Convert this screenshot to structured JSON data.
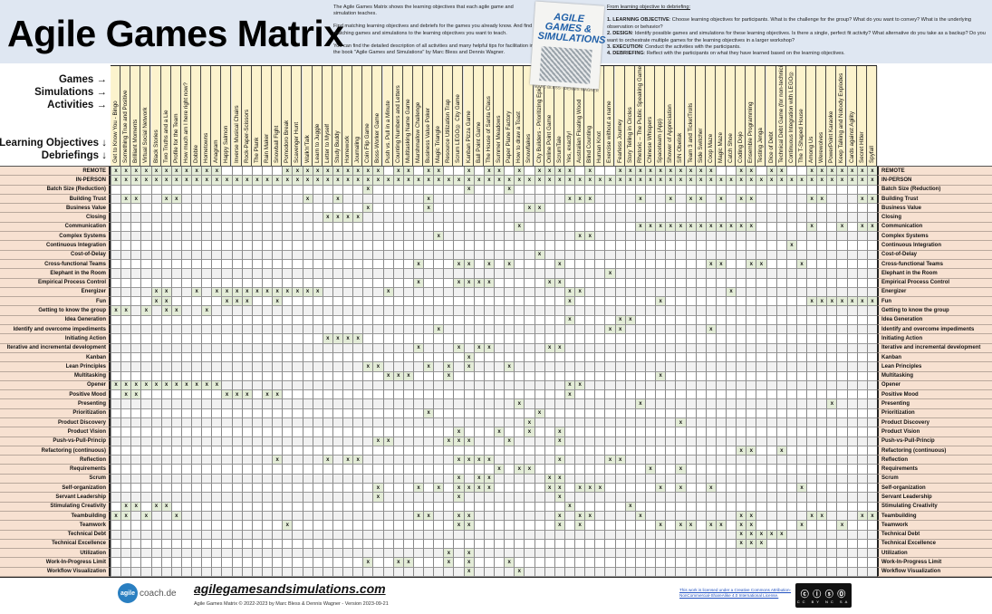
{
  "title": "Agile Games Matrix",
  "intro": [
    "The Agile Games Matrix shows the learning objectives that each agile game and simulation teaches.",
    "Find matching learning objectives and debriefs for the games you already know. And find matching games and simulations to the learning objectives you want to teach.",
    "You can find the detailed description of all activities and many helpful tips for facilitation in the book \"Agile Games and Simulations\" by Marc Bless and Dennis Wagner."
  ],
  "book": {
    "title": "AGILE GAMES & SIMULATIONS",
    "authors": "MARC BLESS · DENNIS WAGNER"
  },
  "debriefing": {
    "heading": "From learning objective to debriefing:",
    "steps": [
      {
        "label": "1. LEARNING OBJECTIVE",
        "text": ": Choose learning objectives for participants. What is the challenge for the group? What do you want to convey? What is the underlying observation or behavior?"
      },
      {
        "label": "2. DESIGN",
        "text": ": Identify possible games and simulations for these learning objectives. Is there a single, perfect fit activity? What alternative do you take as a backup? Do you want to orchestrate multiple games for the learning objectives in a larger workshop?"
      },
      {
        "label": "3. EXECUTION",
        "text": ": Conduct the activities with the participants."
      },
      {
        "label": "4. DEBRIEFING",
        "text": ": Reflect with the participants on what they have learned based on the learning objectives."
      }
    ]
  },
  "axis_labels": {
    "games": "Games →",
    "simulations": "Simulations →",
    "activities": "Activities →",
    "objectives": "Learning Objectives ↓",
    "debriefings": "Debriefings ↓"
  },
  "mark": "x",
  "colors": {
    "header_band": "#dfe7f2",
    "column_header": "#fcf3cd",
    "row_label": "#f7e1d1",
    "marked_cell": "#e3ecd7"
  },
  "games": [
    "Get to Know You - Bingo",
    "Something True and Positive",
    "Brilliant Moments",
    "Virtual Social Network",
    "Black Stories",
    "Two Truths and a Lie",
    "Profile for the Team",
    "How much am I here right now?",
    "Dobble",
    "Hometowns",
    "Anagram",
    "Happy Salmon",
    "Inverse Musical Chairs",
    "Rock-Paper-Scissors",
    "The Plank",
    "Rain Maker",
    "Snowball Fight",
    "Pomodoro Break",
    "Scavenger Hunt",
    "Walk'n'Talk",
    "Learn to Juggle",
    "Letter to Myself",
    "Study Buddy",
    "Homework",
    "Journaling",
    "Coin Flip Game",
    "Boss-Worker Game",
    "Push vs. Pull in a Minute",
    "Counting Numbers and Letters",
    "Multitasking Name Game",
    "Marshmallow Challenge",
    "Business Value Poker",
    "Magic Triangle",
    "Resource Utilization Trap",
    "Scrum LEGO® City Game",
    "Kanban Pizza Game",
    "Ball Point Game",
    "The House of Santa Claus",
    "Summer Meadows",
    "Paper Plane Factory",
    "How to draw a Toast",
    "Snowflakes",
    "City Builders - Prioritizing Epic",
    "Online Point Game",
    "ScrumTale",
    "Yes, exactly!",
    "Australian Floating Wood",
    "Blind Counting",
    "Human Knot",
    "Exercise without a name",
    "Fearless Journey",
    "Story Telling in Circles",
    "Rhetoric – The Public Speaking Game",
    "Chinese Whispers",
    "Spaceteam (App)",
    "Shower of Appreciation",
    "SIN Obelisk",
    "Team 3 and TicketTrolls",
    "Side Switcher",
    "Coop Maze",
    "Magic Maze",
    "Catch Shoe",
    "Coding Dojo",
    "Ensemble Programming",
    "Testing Jenga",
    "Dice of Debt",
    "Technical Debt Game (for non-technicians)",
    "Continuous Integration with LEGO®",
    "The T-Shaped House",
    "Among Us",
    "Werewolves",
    "PowerPoint Karaoke",
    "Keep Talking and Nobody Explodes",
    "Cards against Agility",
    "Secret Hitler",
    "Spyfall"
  ],
  "rows": [
    {
      "label": "REMOTE",
      "games": [
        1,
        2,
        3,
        4,
        5,
        6,
        7,
        8,
        9,
        10,
        11,
        18,
        19,
        20,
        21,
        22,
        23,
        24,
        25,
        26,
        27,
        29,
        30,
        32,
        33,
        36,
        38,
        39,
        41,
        43,
        44,
        45,
        46,
        48,
        51,
        52,
        53,
        54,
        55,
        56,
        57,
        58,
        59,
        60,
        63,
        64,
        66,
        67,
        70,
        71,
        72,
        73,
        74,
        75,
        76
      ]
    },
    {
      "label": "IN-PERSON",
      "games": [
        1,
        2,
        3,
        4,
        5,
        6,
        7,
        8,
        9,
        10,
        11,
        12,
        13,
        14,
        15,
        16,
        17,
        18,
        19,
        20,
        21,
        22,
        23,
        24,
        25,
        26,
        27,
        28,
        29,
        30,
        31,
        32,
        33,
        34,
        35,
        36,
        37,
        38,
        39,
        40,
        41,
        42,
        43,
        44,
        45,
        46,
        47,
        48,
        49,
        50,
        51,
        52,
        53,
        54,
        55,
        56,
        57,
        58,
        59,
        60,
        61,
        62,
        63,
        64,
        65,
        66,
        67,
        68,
        69,
        70,
        71,
        72,
        73,
        74,
        75,
        76
      ]
    },
    {
      "label": "Batch Size (Reduction)",
      "games": [
        26,
        36,
        40
      ]
    },
    {
      "label": "Building Trust",
      "games": [
        2,
        3,
        6,
        7,
        20,
        23,
        32,
        46,
        47,
        48,
        53,
        56,
        58,
        59,
        61,
        63,
        64,
        70,
        71,
        75,
        76
      ]
    },
    {
      "label": "Business Value",
      "games": [
        26,
        32,
        42,
        43
      ]
    },
    {
      "label": "Closing",
      "games": [
        22,
        23,
        24,
        25
      ]
    },
    {
      "label": "Communication",
      "games": [
        41,
        53,
        54,
        55,
        56,
        57,
        58,
        59,
        60,
        61,
        62,
        63,
        64,
        70,
        73,
        75,
        76
      ]
    },
    {
      "label": "Complex Systems",
      "games": [
        33,
        47,
        48
      ]
    },
    {
      "label": "Continuous Integration",
      "games": [
        68
      ]
    },
    {
      "label": "Cost-of-Delay",
      "games": [
        43
      ]
    },
    {
      "label": "Cross-functional Teams",
      "games": [
        31,
        35,
        36,
        38,
        40,
        45,
        60,
        61,
        64,
        65,
        69
      ]
    },
    {
      "label": "Elephant in the Room",
      "games": [
        50
      ]
    },
    {
      "label": "Empirical Process Control",
      "games": [
        31,
        35,
        36,
        37,
        38,
        44,
        45
      ]
    },
    {
      "label": "Energizer",
      "games": [
        5,
        6,
        9,
        11,
        12,
        13,
        14,
        15,
        16,
        17,
        18,
        19,
        20,
        21,
        28,
        46,
        47,
        62
      ]
    },
    {
      "label": "Fun",
      "games": [
        5,
        6,
        12,
        13,
        14,
        17,
        46,
        55,
        70,
        71,
        72,
        73,
        74,
        75,
        76
      ]
    },
    {
      "label": "Getting to know the group",
      "games": [
        1,
        2,
        4,
        6,
        7,
        10
      ]
    },
    {
      "label": "Idea Generation",
      "games": [
        46,
        51,
        52
      ]
    },
    {
      "label": "Identify and overcome impediments",
      "games": [
        33,
        50,
        51,
        60
      ]
    },
    {
      "label": "Initiating Action",
      "games": [
        22,
        23,
        24,
        25
      ]
    },
    {
      "label": "Iterative and incremental development",
      "games": [
        31,
        35,
        37,
        38,
        44,
        45
      ]
    },
    {
      "label": "Kanban",
      "games": [
        36
      ]
    },
    {
      "label": "Lean Principles",
      "games": [
        26,
        27,
        32,
        34,
        36,
        40
      ]
    },
    {
      "label": "Multitasking",
      "games": [
        28,
        29,
        30,
        34,
        55
      ]
    },
    {
      "label": "Opener",
      "games": [
        1,
        2,
        3,
        4,
        5,
        6,
        7,
        8,
        9,
        10,
        11,
        46,
        47
      ]
    },
    {
      "label": "Positive Mood",
      "games": [
        2,
        3,
        12,
        13,
        14,
        16,
        17,
        46
      ]
    },
    {
      "label": "Presenting",
      "games": [
        41,
        53,
        72
      ]
    },
    {
      "label": "Prioritization",
      "games": [
        32,
        43
      ]
    },
    {
      "label": "Product Discovery",
      "games": [
        42,
        57
      ]
    },
    {
      "label": "Product Vision",
      "games": [
        35,
        39,
        42,
        45
      ]
    },
    {
      "label": "Push-vs-Pull-Princip",
      "games": [
        27,
        28,
        34,
        35,
        36,
        40,
        45
      ]
    },
    {
      "label": "Refactoring (continuous)",
      "games": [
        63,
        64,
        67
      ]
    },
    {
      "label": "Reflection",
      "games": [
        17,
        22,
        24,
        25,
        35,
        36,
        37,
        38,
        45,
        50,
        51
      ]
    },
    {
      "label": "Requirements",
      "games": [
        39,
        41,
        42,
        54,
        57
      ]
    },
    {
      "label": "Scrum",
      "games": [
        35,
        37,
        38,
        44,
        45
      ]
    },
    {
      "label": "Self-organization",
      "games": [
        27,
        31,
        33,
        35,
        36,
        37,
        38,
        44,
        45,
        47,
        48,
        49,
        55,
        57,
        60,
        69
      ]
    },
    {
      "label": "Servant Leadership",
      "games": [
        27,
        35,
        45
      ]
    },
    {
      "label": "Stimulating Creativity",
      "games": [
        2,
        3,
        5,
        6,
        46,
        52
      ]
    },
    {
      "label": "Teambuilding",
      "games": [
        1,
        2,
        4,
        7,
        31,
        32,
        35,
        36,
        45,
        47,
        48,
        53,
        63,
        64,
        70,
        71,
        75,
        76
      ]
    },
    {
      "label": "Teamwork",
      "games": [
        18,
        35,
        36,
        45,
        47,
        55,
        57,
        58,
        60,
        61,
        63,
        64,
        69,
        73
      ]
    },
    {
      "label": "Technical Debt",
      "games": [
        63,
        64,
        65,
        66,
        67
      ]
    },
    {
      "label": "Technical Excellence",
      "games": [
        63,
        64,
        65
      ]
    },
    {
      "label": "Utilization",
      "games": [
        34,
        36
      ]
    },
    {
      "label": "Work-In-Progress Limit",
      "games": [
        26,
        29,
        30,
        34,
        36,
        40
      ]
    },
    {
      "label": "Workflow Visualization",
      "games": [
        36,
        41
      ]
    }
  ],
  "footer": {
    "logo": "agilecoach.de",
    "logo_mark": "agile",
    "logo_rest": "coach.de",
    "url": "agilegamesandsimulations.com",
    "copyright": "Agile Games Matrix © 2022-2023 by Marc Bless & Dennis Wagner - Version 2023-09-21",
    "license": "This work is licensed under a Creative Commons Attribution-NonCommercial-ShareAlike 4.0 International License.",
    "cc_badge": "CC BY NC SA"
  }
}
